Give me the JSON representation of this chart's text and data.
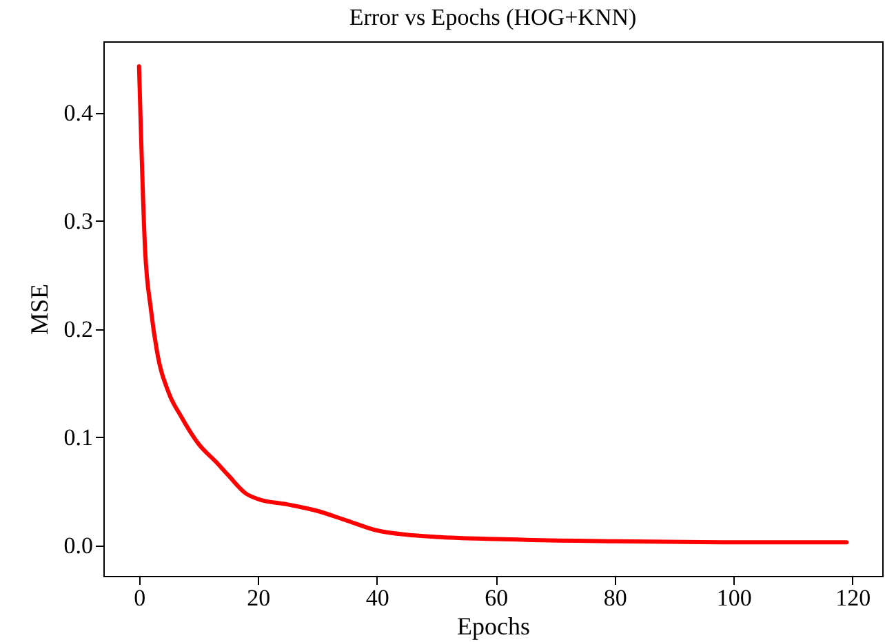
{
  "chart_data": {
    "type": "line",
    "title": "Error vs Epochs (HOG+KNN)",
    "xlabel": "Epochs",
    "ylabel": "MSE",
    "x": [
      0,
      1,
      2,
      3,
      5,
      7,
      10,
      13,
      15,
      18,
      20,
      25,
      30,
      35,
      40,
      45,
      50,
      60,
      80,
      100,
      119
    ],
    "series": [
      {
        "color": "#ff0000",
        "values": [
          0.443,
          0.275,
          0.218,
          0.18,
          0.141,
          0.12,
          0.094,
          0.077,
          0.065,
          0.048,
          0.043,
          0.038,
          0.032,
          0.023,
          0.014,
          0.01,
          0.008,
          0.006,
          0.004,
          0.003,
          0.003
        ]
      }
    ],
    "xlim": [
      -6,
      125
    ],
    "ylim": [
      -0.028,
      0.466
    ],
    "xticks": [
      0,
      20,
      40,
      60,
      80,
      100,
      120
    ],
    "yticks": [
      {
        "value": 0,
        "label": "0.0"
      },
      {
        "value": 0.1,
        "label": "0.1"
      },
      {
        "value": 0.2,
        "label": "0.2"
      },
      {
        "value": 0.3,
        "label": "0.3"
      },
      {
        "value": 0.4,
        "label": "0.4"
      }
    ],
    "grid": false,
    "marker": "none",
    "line_style": "solid"
  }
}
